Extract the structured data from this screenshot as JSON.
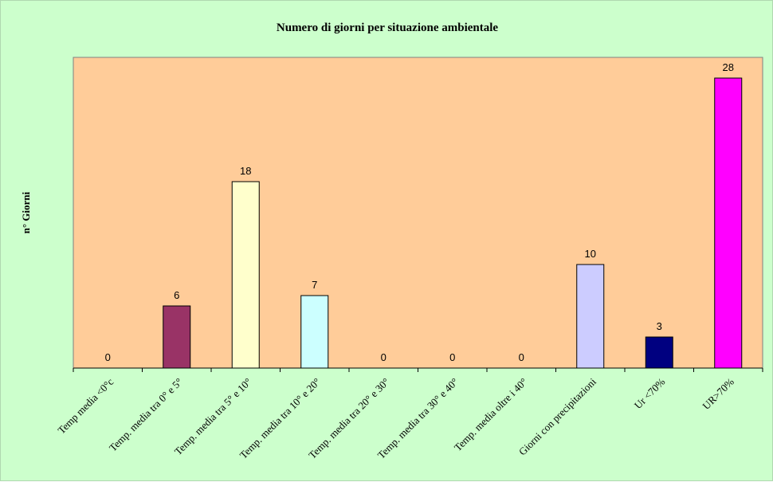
{
  "chart_data": {
    "type": "bar",
    "title": "Numero di giorni per situazione ambientale",
    "xlabel": "",
    "ylabel": "n° Giorni",
    "categories": [
      "Temp media <0°c",
      "Temp. media tra 0° e 5°",
      "Temp. media tra 5° e 10°",
      "Temp. media tra 10° e 20°",
      "Temp. media tra 20° e 30°",
      "Temp. media tra 30° e 40°",
      "Temp. media oltre i 40°",
      "Giorni con precipitazioni",
      "Ur <70%",
      "UR>70%"
    ],
    "values": [
      0,
      6,
      18,
      7,
      0,
      0,
      0,
      10,
      3,
      28
    ],
    "bar_colors": [
      "#993366",
      "#993366",
      "#ffffcc",
      "#ccffff",
      "#993366",
      "#993366",
      "#993366",
      "#ccccff",
      "#000080",
      "#ff00ff"
    ],
    "ylim": [
      0,
      30
    ],
    "grid": false,
    "plot_background": "#ffcc99",
    "chart_background": "#ccffcc"
  }
}
